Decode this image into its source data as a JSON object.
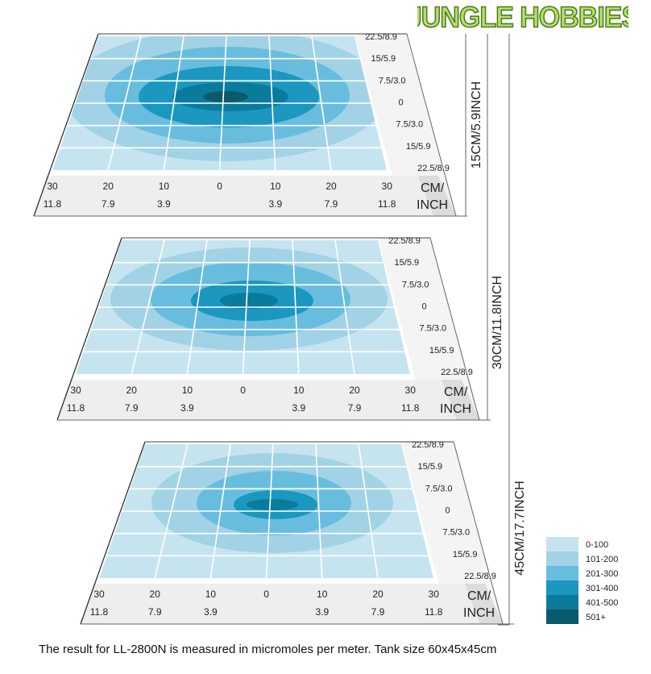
{
  "logo_text": "JUNGLE HOBBIES",
  "footer": "The result for LL-2800N is measured in micromoles per meter.  Tank size 60x45x45cm",
  "chart_data": {
    "type": "heatmap",
    "title": "",
    "unit_label_top": "CM/",
    "unit_label_bottom": "INCH",
    "x_ticks_cm": [
      "30",
      "20",
      "10",
      "0",
      "10",
      "20",
      "30"
    ],
    "x_ticks_inch": [
      "11.8",
      "7.9",
      "3.9",
      "",
      "3.9",
      "7.9",
      "11.8"
    ],
    "y_ticks": [
      "22.5/8.9",
      "15/5.9",
      "7.5/3.0",
      "0",
      "7.5/3.0",
      "15/5.9",
      "22.5/8.9"
    ],
    "panels": [
      {
        "depth_label": "15CM/5.9INCH",
        "peak_level": "501+"
      },
      {
        "depth_label": "30CM/11.8INCH",
        "peak_level": "401-500"
      },
      {
        "depth_label": "45CM/17.7INCH",
        "peak_level": "401-500"
      }
    ],
    "legend": [
      {
        "label": "0-100",
        "color": "#c6e4ef"
      },
      {
        "label": "101-200",
        "color": "#a2d2e6"
      },
      {
        "label": "201-300",
        "color": "#68bddf"
      },
      {
        "label": "301-400",
        "color": "#1b97c0"
      },
      {
        "label": "401-500",
        "color": "#0b7b9c"
      },
      {
        "label": "501+",
        "color": "#0a5a6c"
      }
    ]
  }
}
